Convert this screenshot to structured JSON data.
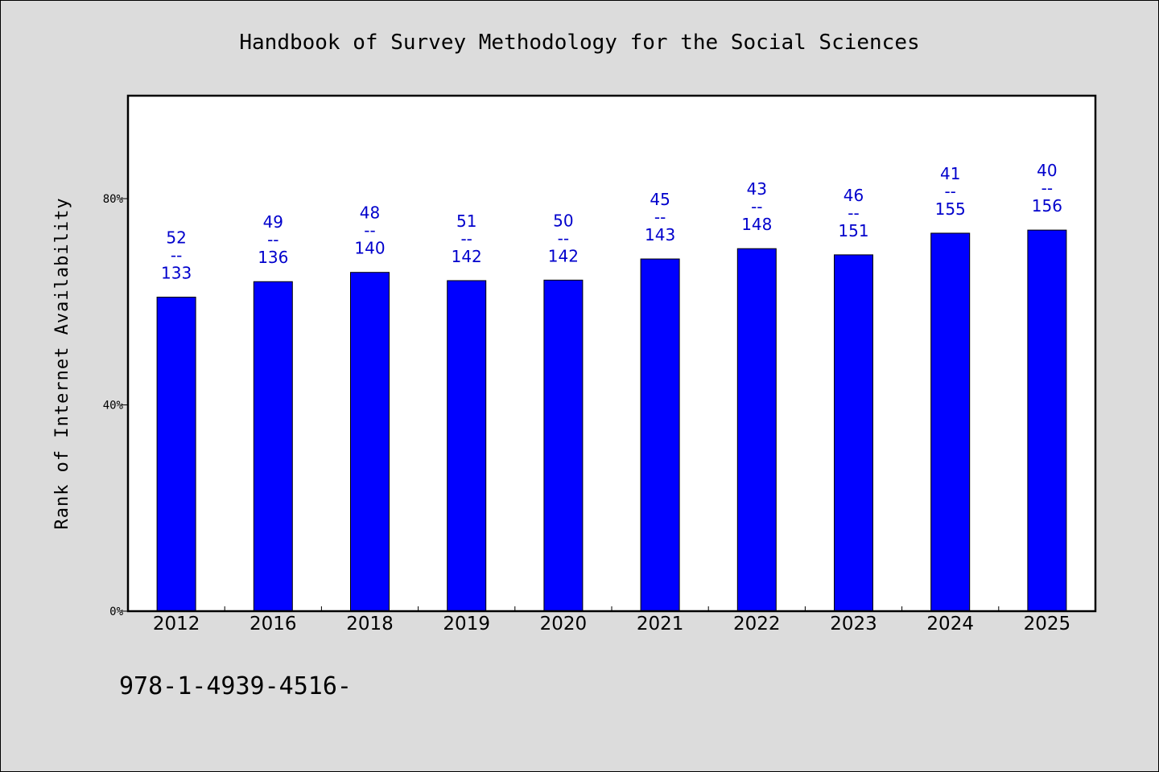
{
  "chart_data": {
    "type": "bar",
    "title": "Handbook of Survey Methodology for the Social Sciences",
    "ylabel": "Rank of Internet Availability",
    "xlabel": "",
    "ylim": [
      0,
      100
    ],
    "yticks": [
      {
        "value": 0,
        "label": "0%"
      },
      {
        "value": 40,
        "label": "40%"
      },
      {
        "value": 80,
        "label": "80%"
      }
    ],
    "categories": [
      "2012",
      "2016",
      "2018",
      "2019",
      "2020",
      "2021",
      "2022",
      "2023",
      "2024",
      "2025"
    ],
    "values": [
      60.9,
      63.9,
      65.7,
      64.1,
      64.2,
      68.3,
      70.3,
      69.1,
      73.3,
      73.9
    ],
    "data_labels": [
      {
        "top": "52",
        "sep": "--",
        "bottom": "133"
      },
      {
        "top": "49",
        "sep": "--",
        "bottom": "136"
      },
      {
        "top": "48",
        "sep": "--",
        "bottom": "140"
      },
      {
        "top": "51",
        "sep": "--",
        "bottom": "142"
      },
      {
        "top": "50",
        "sep": "--",
        "bottom": "142"
      },
      {
        "top": "45",
        "sep": "--",
        "bottom": "143"
      },
      {
        "top": "43",
        "sep": "--",
        "bottom": "148"
      },
      {
        "top": "46",
        "sep": "--",
        "bottom": "151"
      },
      {
        "top": "41",
        "sep": "--",
        "bottom": "155"
      },
      {
        "top": "40",
        "sep": "--",
        "bottom": "156"
      }
    ],
    "grid": false,
    "legend": "none",
    "bar_color": "#0000ff",
    "label_color": "#0000cc"
  },
  "footer": "978-1-4939-4516-"
}
